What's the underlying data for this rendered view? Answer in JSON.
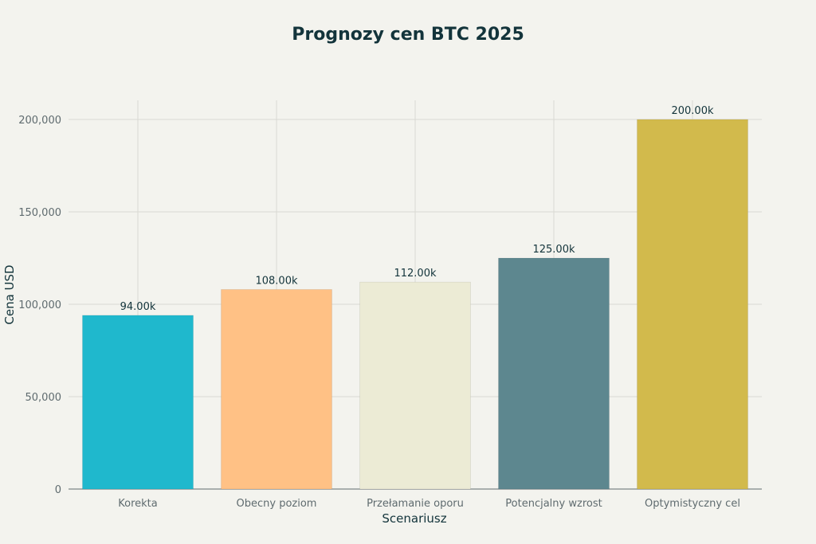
{
  "chart_data": {
    "type": "bar",
    "title": "Prognozy cen BTC 2025",
    "xlabel": "Scenariusz",
    "ylabel": "Cena USD",
    "categories": [
      "Korekta",
      "Obecny poziom",
      "Przełamanie oporu",
      "Potencjalny wzrost",
      "Optymistyczny cel"
    ],
    "values": [
      94000,
      108000,
      112000,
      125000,
      200000
    ],
    "data_labels": [
      "94.00k",
      "108.00k",
      "112.00k",
      "125.00k",
      "200.00k"
    ],
    "colors": [
      "#1fb8cd",
      "#ffc185",
      "#eceBd5",
      "#5d878f",
      "#d2ba4c"
    ],
    "ylim": [
      0,
      210000
    ],
    "yticks": [
      0,
      50000,
      100000,
      150000,
      200000
    ],
    "ytick_labels": [
      "0",
      "50,000",
      "100,000",
      "150,000",
      "200,000"
    ],
    "grid": true,
    "legend": "none"
  }
}
